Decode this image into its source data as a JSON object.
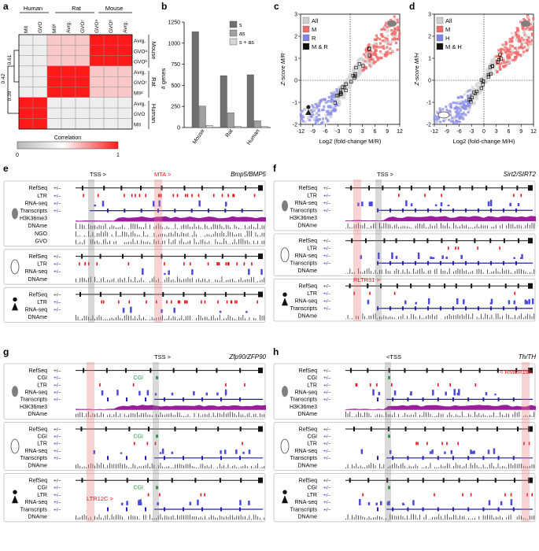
{
  "panel_letters": [
    "a",
    "b",
    "c",
    "d",
    "e",
    "f",
    "g",
    "h"
  ],
  "panel_a": {
    "species": [
      "Human",
      "Rat",
      "Mouse"
    ],
    "col_labels": [
      "MII",
      "GVO",
      "MIIᵈ",
      "Avrg.",
      "GVOᶜ",
      "GVOᵃ",
      "GVOᵇ",
      "Avrg."
    ],
    "row_labels": [
      "Avrg.",
      "GVOᵃ",
      "GVOᵇ",
      "Avrg.",
      "GVOᶜ",
      "MIIᵈ",
      "Avrg.",
      "GVO",
      "MII"
    ],
    "row_groups": [
      "Mouse",
      "Rat",
      "Human"
    ],
    "dendro_values": [
      "0.61",
      "0.42",
      "0.39"
    ],
    "colorbar_title": "Correlation",
    "colorbar_min": "0",
    "colorbar_max": "1"
  },
  "chart_data": [
    {
      "type": "bar",
      "panel": "b",
      "ylabel": "# genes",
      "categories": [
        "Mouse",
        "Rat",
        "Human"
      ],
      "ylim": [
        0,
        1250
      ],
      "yticks": [
        "0",
        "250",
        "500",
        "750",
        "1000",
        "1250"
      ],
      "series": [
        {
          "name": "s",
          "color": "#707070",
          "values": [
            1135,
            615,
            625
          ]
        },
        {
          "name": "as",
          "color": "#a0a0a0",
          "values": [
            255,
            175,
            80
          ]
        },
        {
          "name": "s + as",
          "color": "#d6d6d6",
          "values": [
            25,
            15,
            12
          ]
        }
      ]
    },
    {
      "type": "scatter",
      "panel": "c",
      "xlabel": "Log2 (fold-change M/R)",
      "ylabel": "Z-score M/R",
      "xlim": [
        -12,
        12
      ],
      "ylim": [
        -2,
        3
      ],
      "xticks": [
        "-12",
        "-9",
        "-6",
        "-3",
        "0",
        "3",
        "6",
        "9",
        "12"
      ],
      "yticks": [
        "-2",
        "-1",
        "0",
        "1",
        "2",
        "3"
      ],
      "legend": [
        "All",
        "M",
        "R",
        "M & R"
      ],
      "legend_colors": [
        "#cfcfcf",
        "#f06a6a",
        "#7f84e8",
        "#111111"
      ]
    },
    {
      "type": "scatter",
      "panel": "d",
      "xlabel": "Log2 (fold-change M/H)",
      "ylabel": "Z-score M/H",
      "xlim": [
        -12,
        12
      ],
      "ylim": [
        -2,
        3
      ],
      "xticks": [
        "-12",
        "-9",
        "-6",
        "-3",
        "0",
        "3",
        "6",
        "9",
        "12"
      ],
      "yticks": [
        "-2",
        "-1",
        "0",
        "1",
        "2",
        "3"
      ],
      "legend": [
        "All",
        "M",
        "H",
        "M & H"
      ],
      "legend_colors": [
        "#cfcfcf",
        "#f06a6a",
        "#7f84e8",
        "#111111"
      ]
    }
  ],
  "panel_e": {
    "gene": "Bmp5/BMP5",
    "tss_label": "TSS >",
    "element_label": "MTA >",
    "tracks_mouse": [
      "RefSeq",
      "LTR",
      "RNA-seq",
      "Transcripts",
      "H3K36me3",
      "DNAme",
      "NGO",
      "GVO"
    ],
    "tracks_rat": [
      "RefSeq",
      "LTR",
      "RNA-seq",
      "DNAme"
    ],
    "tracks_human": [
      "RefSeq",
      "LTR",
      "RNA-seq",
      "DNAme"
    ]
  },
  "panel_f": {
    "gene": "Sirt2/SIRT2",
    "tss_label": "TSS >",
    "element_label": "RLTR31 >",
    "tracks_mouse": [
      "RefSeq",
      "LTR",
      "RNA-seq",
      "Transcripts",
      "H3K36me3",
      "DNAme"
    ],
    "tracks_rat": [
      "RefSeq",
      "LTR",
      "RNA-seq",
      "Transcripts",
      "DNAme"
    ],
    "tracks_human": [
      "RefSeq",
      "LTR",
      "RNA-seq",
      "Transcripts",
      "DNAme"
    ]
  },
  "panel_g": {
    "gene": "Zfp90/ZFP90",
    "tss_label": "TSS >",
    "cgi_label": "CGI",
    "element_label": "LTR12C >",
    "tracks_mouse": [
      "RefSeq",
      "CGI",
      "LTR",
      "RNA-seq",
      "Transcripts",
      "H3K36me3",
      "DNAme"
    ],
    "tracks_rat": [
      "RefSeq",
      "CGI",
      "LTR",
      "RNA-seq",
      "Transcripts",
      "DNAme"
    ],
    "tracks_human": [
      "RefSeq",
      "CGI",
      "LTR",
      "RNA-seq",
      "Transcripts",
      "DNAme"
    ]
  },
  "panel_h": {
    "gene": "Th/TH",
    "tss_label": "<TSS",
    "element_label": "< RMER19A",
    "tracks_mouse": [
      "RefSeq",
      "CGI",
      "LTR",
      "RNA-seq",
      "Transcripts",
      "H3K36me3",
      "DNAme"
    ],
    "tracks_rat": [
      "RefSeq",
      "CGI",
      "LTR",
      "RNA-seq",
      "Transcripts",
      "DNAme"
    ],
    "tracks_human": [
      "RefSeq",
      "CGI",
      "LTR",
      "RNA-seq",
      "Transcripts",
      "DNAme"
    ]
  },
  "strand_label": "+/–",
  "colors": {
    "red": "#e8141c",
    "blue": "#1f1fb4",
    "purple": "#9c1d9c",
    "green": "#1a9c3a",
    "gray": "#c8c8c8",
    "pink": "#f4b8b8",
    "grid_red": "#ff2a2a"
  }
}
